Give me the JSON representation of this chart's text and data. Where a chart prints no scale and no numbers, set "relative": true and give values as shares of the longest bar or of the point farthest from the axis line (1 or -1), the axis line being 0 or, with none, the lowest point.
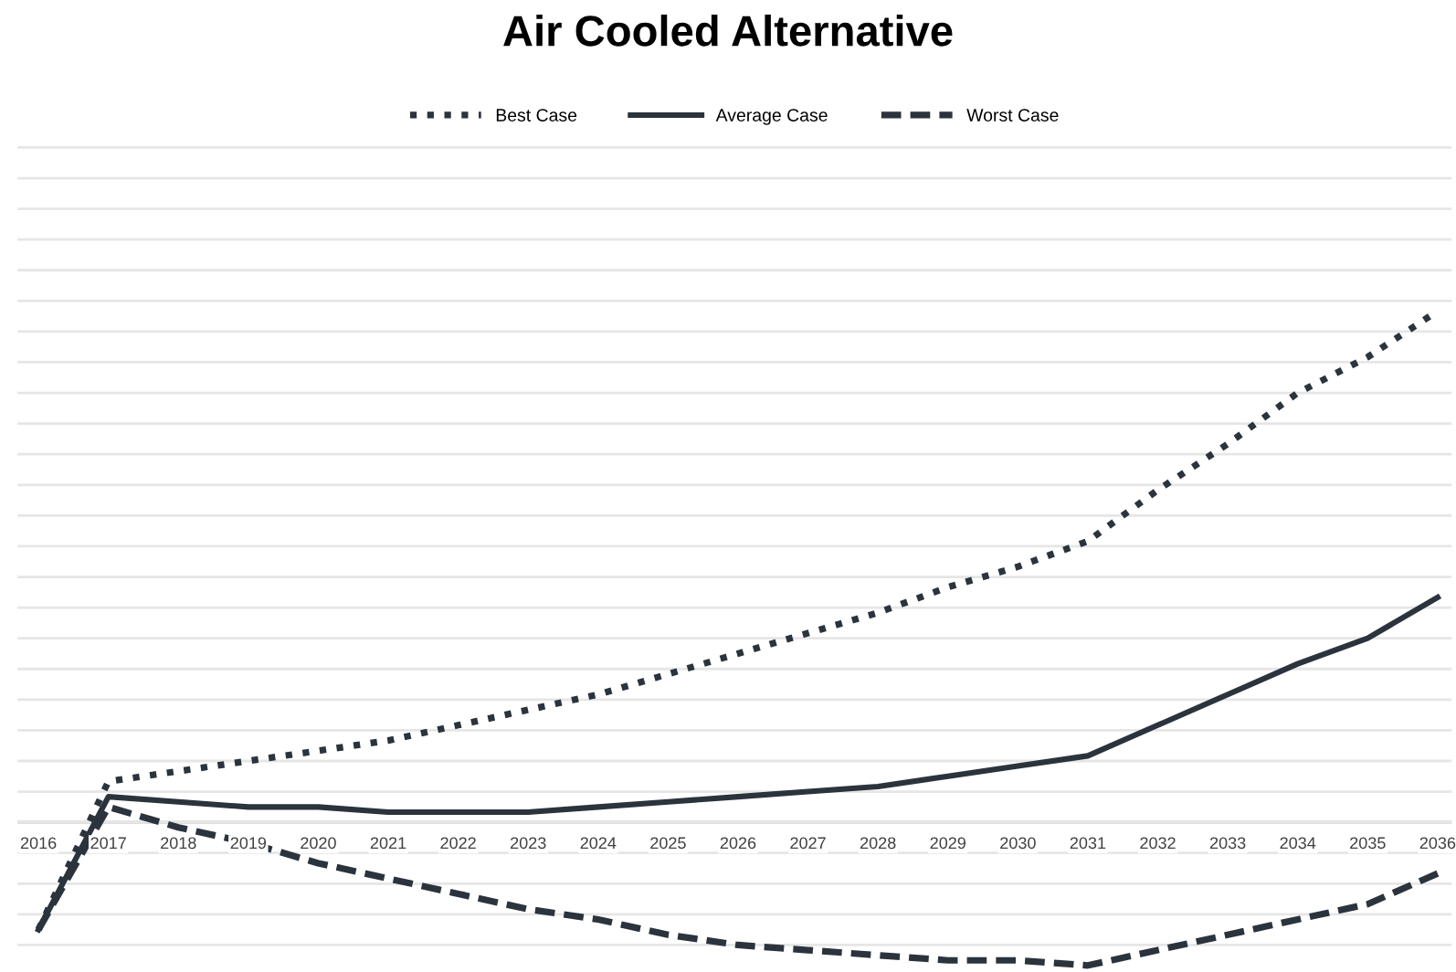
{
  "chart_data": {
    "type": "line",
    "title": "Air Cooled Alternative",
    "relative": true,
    "grid": "y",
    "legend": "top",
    "categories": [
      "2016",
      "2017",
      "2018",
      "2019",
      "2020",
      "2021",
      "2022",
      "2023",
      "2024",
      "2025",
      "2026",
      "2027",
      "2028",
      "2029",
      "2030",
      "2031",
      "2032",
      "2033",
      "2034",
      "2035",
      "2036"
    ],
    "series": [
      {
        "name": "Best Case",
        "color": "#2b333d",
        "line_style": "dotted",
        "values": [
          -0.21,
          0.08,
          0.1,
          0.12,
          0.14,
          0.16,
          0.19,
          0.22,
          0.25,
          0.29,
          0.33,
          0.37,
          0.41,
          0.46,
          0.5,
          0.55,
          0.65,
          0.74,
          0.84,
          0.91,
          1.0
        ]
      },
      {
        "name": "Average Case",
        "color": "#2b333d",
        "line_style": "solid",
        "values": [
          -0.21,
          0.05,
          0.04,
          0.03,
          0.03,
          0.02,
          0.02,
          0.02,
          0.03,
          0.04,
          0.05,
          0.06,
          0.07,
          0.09,
          0.11,
          0.13,
          0.19,
          0.25,
          0.31,
          0.36,
          0.44
        ]
      },
      {
        "name": "Worst Case",
        "color": "#2b333d",
        "line_style": "dashed",
        "values": [
          -0.21,
          0.03,
          -0.01,
          -0.04,
          -0.08,
          -0.11,
          -0.14,
          -0.17,
          -0.19,
          -0.22,
          -0.24,
          -0.25,
          -0.26,
          -0.27,
          -0.27,
          -0.28,
          -0.25,
          -0.22,
          -0.19,
          -0.16,
          -0.1
        ]
      }
    ]
  }
}
